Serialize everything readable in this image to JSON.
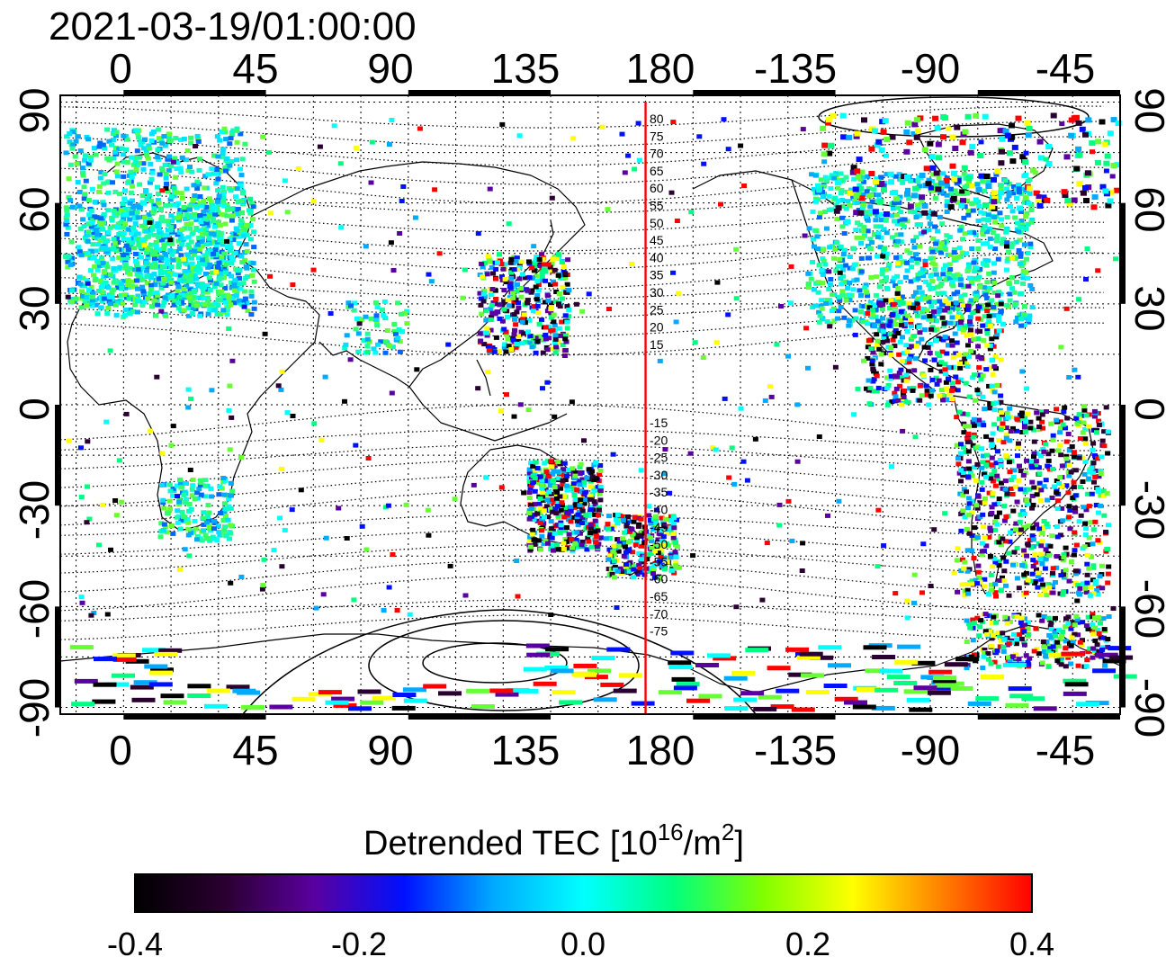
{
  "title": "2021-03-19/01:00:00",
  "map": {
    "lon_ticks": [
      "0",
      "45",
      "90",
      "135",
      "180",
      "-135",
      "-90",
      "-45"
    ],
    "lat_ticks": [
      "90",
      "60",
      "30",
      "0",
      "-30",
      "-60",
      "-90"
    ],
    "lon_range": [
      -20,
      315
    ],
    "lat_range": [
      -92,
      92
    ],
    "grid": true,
    "grid_step_lon": 15,
    "grid_step_lat": 15,
    "meridian_marker_lon": 165,
    "marker_color": "#ff0000",
    "north_mlat_labels": [
      "80",
      "75",
      "70",
      "65",
      "60",
      "55",
      "50",
      "45",
      "40",
      "35",
      "30",
      "25",
      "20",
      "15"
    ],
    "south_mlat_labels": [
      "-15",
      "-20",
      "-25",
      "-30",
      "-35",
      "-40",
      "-45",
      "-50",
      "-55",
      "-60",
      "-65",
      "-70",
      "-75"
    ]
  },
  "colorbar": {
    "label_main": "Detrended TEC  [10",
    "label_sup": "16",
    "label_mid": "/m",
    "label_sup2": "2",
    "label_end": "]",
    "ticks": [
      "-0.4",
      "-0.2",
      "0.0",
      "0.2",
      "0.4"
    ],
    "range": [
      -0.4,
      0.4
    ],
    "colors": [
      "#000000",
      "#2a0030",
      "#5a00a0",
      "#0010ff",
      "#00aaff",
      "#00ffff",
      "#00ff80",
      "#80ff00",
      "#ffff00",
      "#ff8000",
      "#ff0000"
    ]
  }
}
